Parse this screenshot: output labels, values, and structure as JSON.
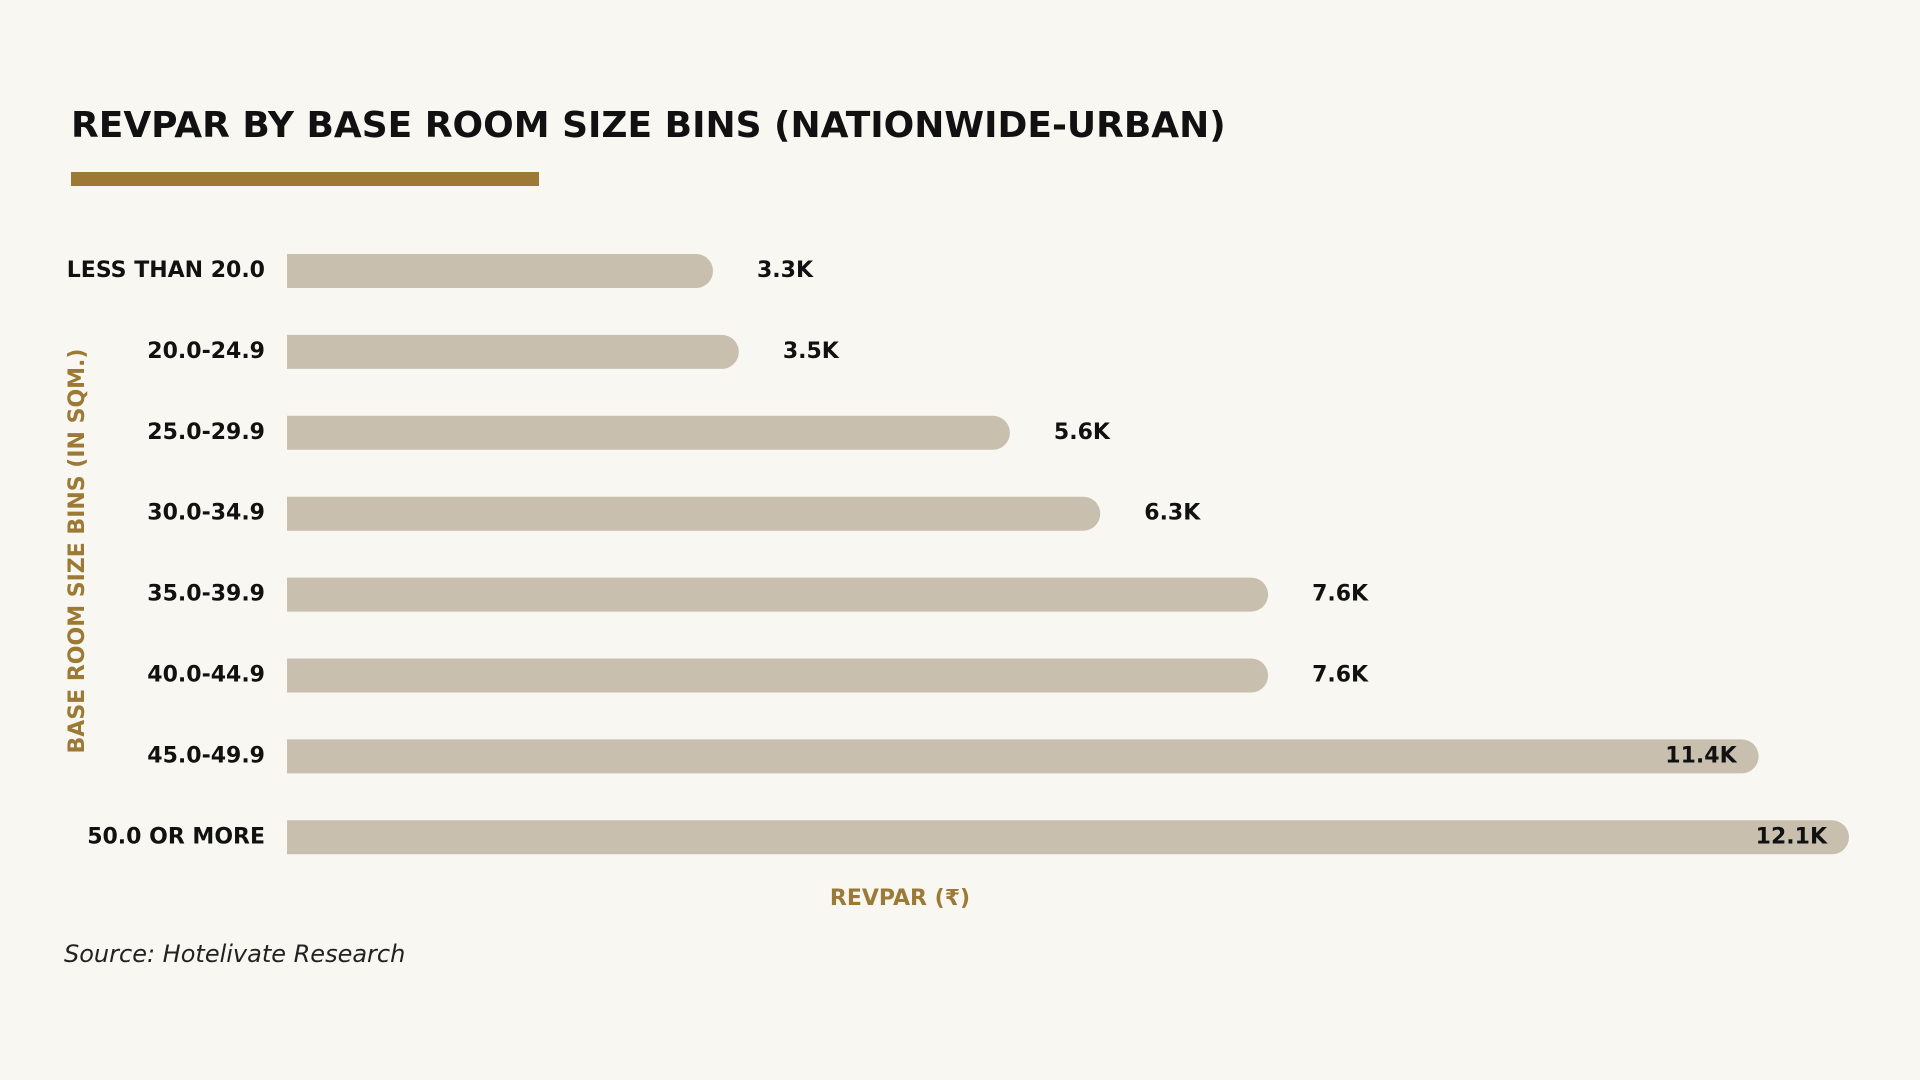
{
  "chart_data": {
    "type": "bar",
    "orientation": "horizontal",
    "title": "REVPAR BY BASE ROOM SIZE BINS (NATIONWIDE-URBAN)",
    "x_label": "REVPAR (₹)",
    "y_label": "BASE ROOM SIZE BINS (IN SQM.)",
    "categories": [
      "LESS THAN 20.0",
      "20.0-24.9",
      "25.0-29.9",
      "30.0-34.9",
      "35.0-39.9",
      "40.0-44.9",
      "45.0-49.9",
      "50.0 OR MORE"
    ],
    "values": [
      3300,
      3500,
      5600,
      6300,
      7600,
      7600,
      11400,
      12100
    ],
    "value_labels": [
      "3.3K",
      "3.5K",
      "5.6K",
      "6.3K",
      "7.6K",
      "7.6K",
      "11.4K",
      "12.1K"
    ],
    "color": "#c8bfae",
    "source": "Source: Hotelivate Research"
  }
}
